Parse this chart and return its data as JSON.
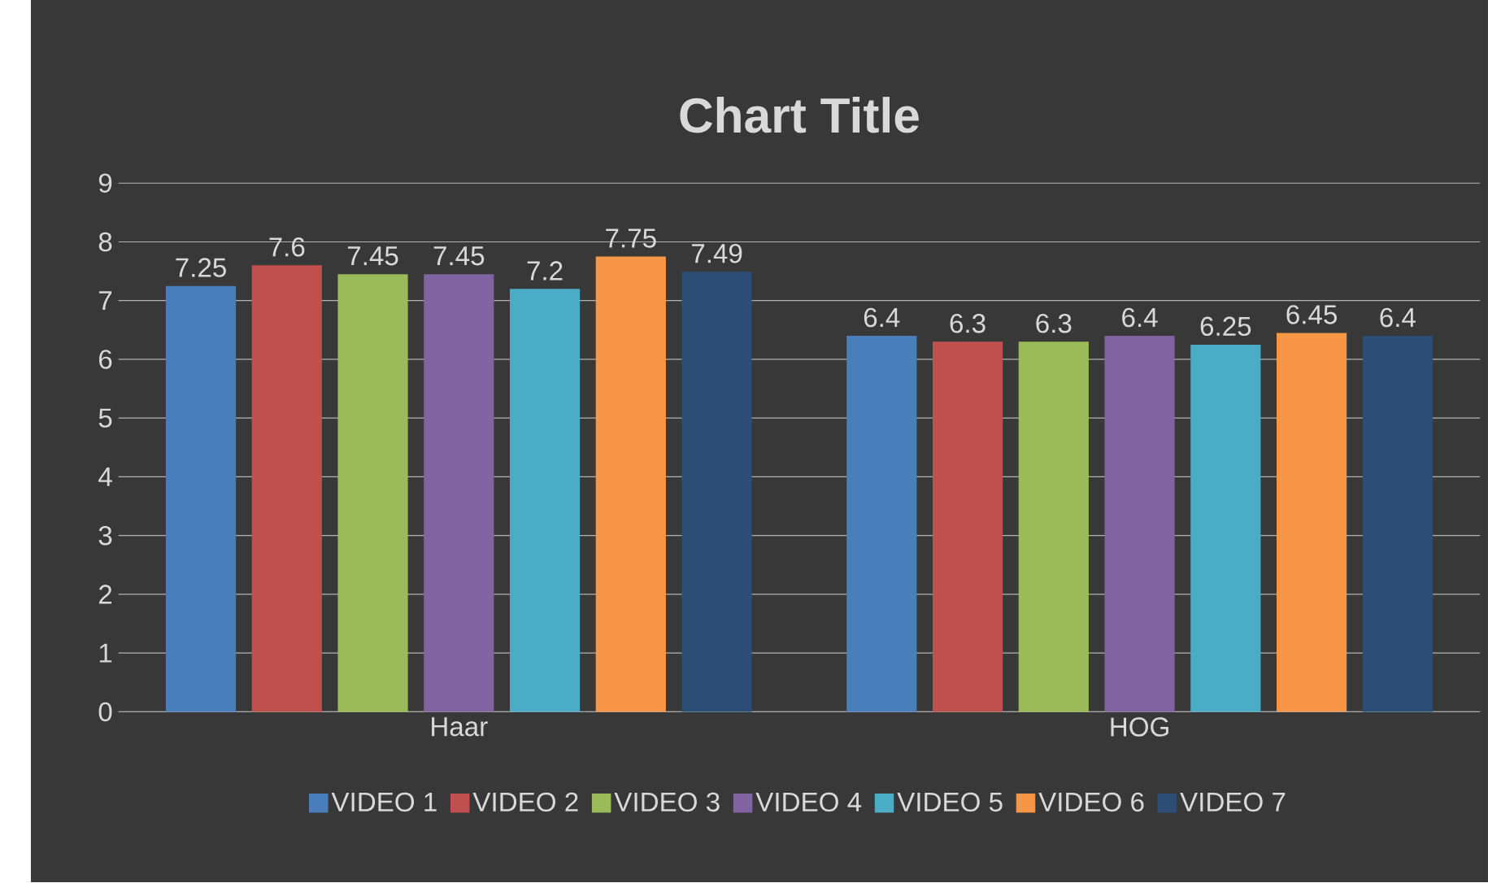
{
  "chart_data": {
    "type": "bar",
    "title": "Chart Title",
    "categories": [
      "Haar",
      "HOG"
    ],
    "series": [
      {
        "name": "VIDEO 1",
        "color": "#4a7ebb",
        "values": [
          7.25,
          6.4
        ]
      },
      {
        "name": "VIDEO 2",
        "color": "#c0504d",
        "values": [
          7.6,
          6.3
        ]
      },
      {
        "name": "VIDEO 3",
        "color": "#9bbb59",
        "values": [
          7.45,
          6.3
        ]
      },
      {
        "name": "VIDEO 4",
        "color": "#8064a2",
        "values": [
          7.45,
          6.4
        ]
      },
      {
        "name": "VIDEO 5",
        "color": "#4bacc6",
        "values": [
          7.2,
          6.25
        ]
      },
      {
        "name": "VIDEO 6",
        "color": "#f79646",
        "values": [
          7.75,
          6.45
        ]
      },
      {
        "name": "VIDEO 7",
        "color": "#2c4d75",
        "values": [
          7.49,
          6.4
        ]
      }
    ],
    "ylim": [
      0,
      9
    ],
    "yticks": [
      0,
      1,
      2,
      3,
      4,
      5,
      6,
      7,
      8,
      9
    ],
    "grid": "y",
    "legend": "bottom",
    "data_labels": true
  }
}
